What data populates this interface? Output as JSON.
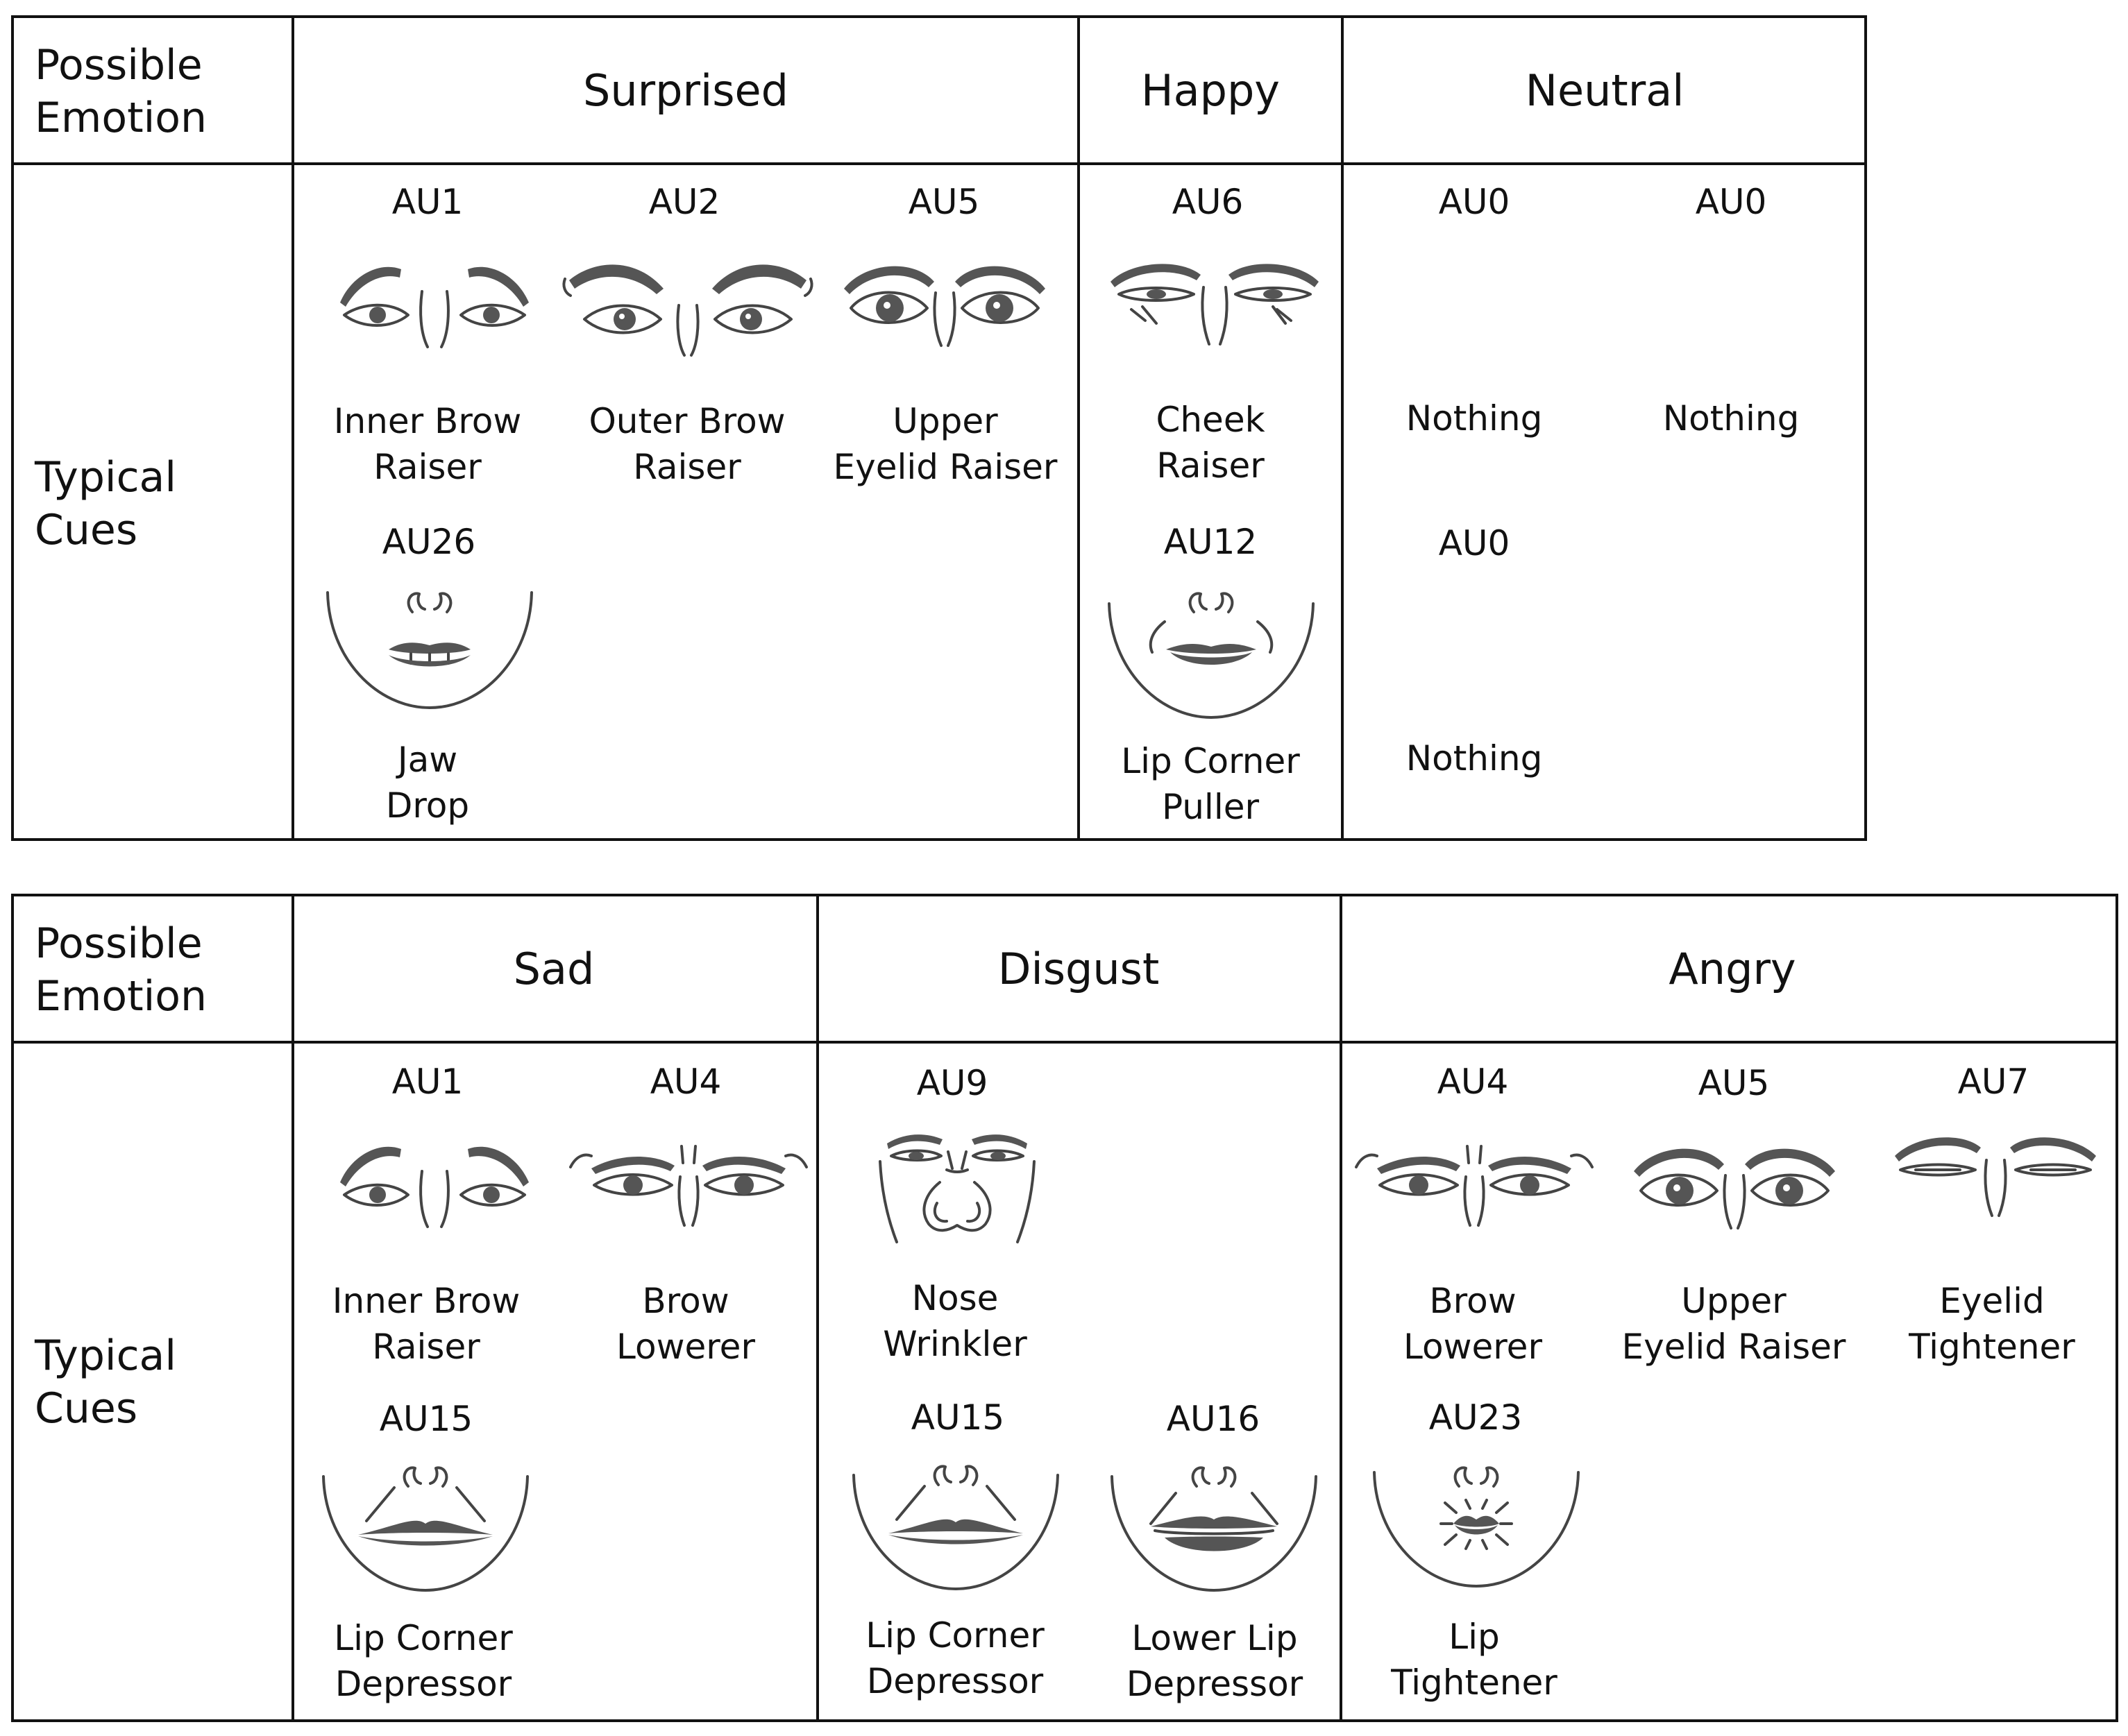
{
  "table1": {
    "row1_label": [
      "Possible",
      "Emotion"
    ],
    "row2_label": [
      "Typical",
      "Cues"
    ],
    "emotions": [
      "Surprised",
      "Happy",
      "Neutral"
    ],
    "cues": [
      {
        "code": "AU1",
        "name": [
          "Inner Brow",
          "Raiser"
        ],
        "icon": "inner-brow-raiser-eyes-icon"
      },
      {
        "code": "AU2",
        "name": [
          "Outer Brow",
          "Raiser"
        ],
        "icon": "outer-brow-raiser-eyes-icon"
      },
      {
        "code": "AU5",
        "name": [
          "Upper",
          "Eyelid Raiser"
        ],
        "icon": "upper-eyelid-raiser-eyes-icon"
      },
      {
        "code": "AU26",
        "name": [
          "Jaw",
          "Drop"
        ],
        "icon": "jaw-drop-face-icon"
      },
      {
        "code": "AU6",
        "name": [
          "Cheek",
          "Raiser"
        ],
        "icon": "cheek-raiser-eyes-icon"
      },
      {
        "code": "AU12",
        "name": [
          "Lip Corner",
          "Puller"
        ],
        "icon": "lip-corner-puller-face-icon"
      },
      {
        "code": "AU0",
        "name": [
          "Nothing"
        ]
      },
      {
        "code": "AU0",
        "name": [
          "Nothing"
        ]
      },
      {
        "code": "AU0",
        "name": [
          "Nothing"
        ]
      }
    ]
  },
  "table2": {
    "row1_label": [
      "Possible",
      "Emotion"
    ],
    "row2_label": [
      "Typical",
      "Cues"
    ],
    "emotions": [
      "Sad",
      "Disgust",
      "Angry"
    ],
    "cues": [
      {
        "code": "AU1",
        "name": [
          "Inner Brow",
          "Raiser"
        ],
        "icon": "inner-brow-raiser-eyes-icon"
      },
      {
        "code": "AU4",
        "name": [
          "Brow",
          "Lowerer"
        ],
        "icon": "brow-lowerer-eyes-icon"
      },
      {
        "code": "AU15",
        "name": [
          "Lip Corner",
          "Depressor"
        ],
        "icon": "lip-corner-depressor-face-icon"
      },
      {
        "code": "AU9",
        "name": [
          "Nose",
          "Wrinkler"
        ],
        "icon": "nose-wrinkler-face-icon"
      },
      {
        "code": "AU15",
        "name": [
          "Lip Corner",
          "Depressor"
        ],
        "icon": "lip-corner-depressor-face-icon"
      },
      {
        "code": "AU16",
        "name": [
          "Lower Lip",
          "Depressor"
        ],
        "icon": "lower-lip-depressor-face-icon"
      },
      {
        "code": "AU4",
        "name": [
          "Brow",
          "Lowerer"
        ],
        "icon": "brow-lowerer-eyes-icon"
      },
      {
        "code": "AU5",
        "name": [
          "Upper",
          "Eyelid Raiser"
        ],
        "icon": "upper-eyelid-raiser-eyes-icon"
      },
      {
        "code": "AU7",
        "name": [
          "Eyelid",
          "Tightener"
        ],
        "icon": "eyelid-tightener-eyes-icon"
      },
      {
        "code": "AU23",
        "name": [
          "Lip",
          "Tightener"
        ],
        "icon": "lip-tightener-face-icon"
      }
    ]
  }
}
